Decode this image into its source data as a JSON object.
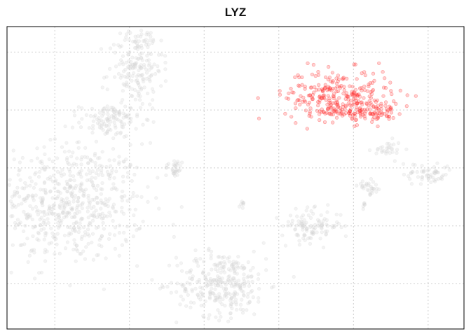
{
  "chart_data": {
    "type": "scatter",
    "title": "LYZ",
    "xlabel": "",
    "ylabel": "",
    "grid": true,
    "legend": "none",
    "ticks_labeled": false,
    "x_gridlines": [
      -10,
      -5,
      0,
      5,
      10,
      15
    ],
    "y_gridlines": [
      -10,
      -5,
      0,
      5,
      10
    ],
    "xlim": [
      -13.2,
      17.4
    ],
    "ylim": [
      -13.9,
      12.2
    ],
    "colors": {
      "low_expression": "#d4d4d4",
      "high_expression": "#ff2a2a",
      "grid": "#cfcfcf",
      "frame": "#000000"
    },
    "series": [
      {
        "expression": "low",
        "clusters": [
          {
            "center": [
              -9.0,
              -3.0
            ],
            "spread": [
              2.5,
              2.6
            ],
            "count": 620
          },
          {
            "center": [
              -6.3,
              4.1
            ],
            "spread": [
              1.0,
              0.7
            ],
            "count": 110
          },
          {
            "center": [
              -4.6,
              8.6
            ],
            "spread": [
              0.9,
              1.7
            ],
            "count": 170
          },
          {
            "center": [
              -3.8,
              11.0
            ],
            "spread": [
              0.5,
              0.5
            ],
            "count": 25
          },
          {
            "center": [
              -2.0,
              0.0
            ],
            "spread": [
              0.3,
              0.4
            ],
            "count": 30
          },
          {
            "center": [
              1.2,
              -10.0
            ],
            "spread": [
              1.5,
              1.4
            ],
            "count": 300
          },
          {
            "center": [
              2.5,
              -3.0
            ],
            "spread": [
              0.12,
              0.2
            ],
            "count": 8
          },
          {
            "center": [
              7.2,
              -5.0
            ],
            "spread": [
              1.0,
              0.7
            ],
            "count": 110
          },
          {
            "center": [
              11.1,
              -1.7
            ],
            "spread": [
              0.4,
              0.3
            ],
            "count": 30
          },
          {
            "center": [
              10.7,
              -3.2
            ],
            "spread": [
              0.1,
              0.15
            ],
            "count": 6
          },
          {
            "center": [
              15.0,
              -0.5
            ],
            "spread": [
              0.8,
              0.5
            ],
            "count": 55
          },
          {
            "center": [
              12.3,
              1.5
            ],
            "spread": [
              0.5,
              0.4
            ],
            "count": 30
          }
        ]
      },
      {
        "expression": "high",
        "clusters": [
          {
            "center": [
              9.0,
              6.3
            ],
            "spread": [
              1.8,
              1.1
            ],
            "count": 260
          },
          {
            "center": [
              11.1,
              4.9
            ],
            "spread": [
              0.9,
              0.4
            ],
            "count": 70
          },
          {
            "center": [
              9.2,
              4.8
            ],
            "spread": [
              1.2,
              0.25
            ],
            "count": 35
          }
        ]
      }
    ]
  }
}
